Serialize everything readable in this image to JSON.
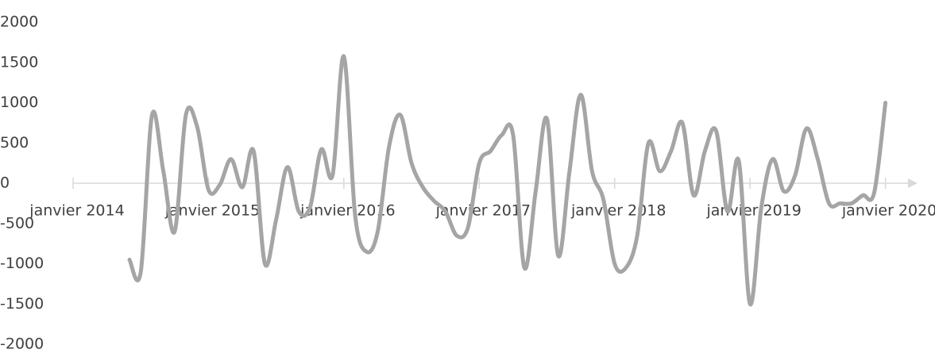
{
  "chart_data": {
    "type": "line",
    "x": [
      "2014-06",
      "2014-07",
      "2014-08",
      "2014-09",
      "2014-10",
      "2014-11",
      "2014-12",
      "2015-01",
      "2015-02",
      "2015-03",
      "2015-04",
      "2015-05",
      "2015-06",
      "2015-07",
      "2015-08",
      "2015-09",
      "2015-10",
      "2015-11",
      "2015-12",
      "2016-01",
      "2016-02",
      "2016-03",
      "2016-04",
      "2016-05",
      "2016-06",
      "2016-07",
      "2016-08",
      "2016-09",
      "2016-10",
      "2016-11",
      "2016-12",
      "2017-01",
      "2017-02",
      "2017-03",
      "2017-04",
      "2017-05",
      "2017-06",
      "2017-07",
      "2017-08",
      "2017-09",
      "2017-10",
      "2017-11",
      "2017-12",
      "2018-01",
      "2018-02",
      "2018-03",
      "2018-04",
      "2018-05",
      "2018-06",
      "2018-07",
      "2018-08",
      "2018-09",
      "2018-10",
      "2018-11",
      "2018-12",
      "2019-01",
      "2019-02",
      "2019-03",
      "2019-04",
      "2019-05",
      "2019-06",
      "2019-07",
      "2019-08",
      "2019-09",
      "2019-10",
      "2019-11",
      "2019-12",
      "2020-01"
    ],
    "series": [
      {
        "color": "#a5a5a5",
        "values": [
          -950,
          -1100,
          850,
          150,
          -600,
          850,
          700,
          -80,
          -20,
          300,
          -50,
          400,
          -1000,
          -450,
          200,
          -350,
          -300,
          420,
          100,
          1575,
          -400,
          -850,
          -600,
          450,
          850,
          250,
          -50,
          -220,
          -350,
          -650,
          -550,
          250,
          400,
          600,
          600,
          -1050,
          -100,
          800,
          -900,
          150,
          1100,
          150,
          -200,
          -1000,
          -1050,
          -650,
          500,
          150,
          400,
          750,
          -150,
          400,
          650,
          -350,
          280,
          -1500,
          -300,
          300,
          -100,
          100,
          680,
          300,
          -250,
          -250,
          -250,
          -150,
          -120,
          1000
        ]
      }
    ],
    "xlim": [
      "2014-01",
      "2020-03"
    ],
    "xticks": [
      {
        "value": "2014-01",
        "label": "janvier 2014"
      },
      {
        "value": "2015-01",
        "label": "janvier 2015"
      },
      {
        "value": "2016-01",
        "label": "janvier 2016"
      },
      {
        "value": "2017-01",
        "label": "janvier 2017"
      },
      {
        "value": "2018-01",
        "label": "janvier 2018"
      },
      {
        "value": "2019-01",
        "label": "janvier 2019"
      },
      {
        "value": "2020-01",
        "label": "janvier 2020"
      }
    ],
    "ylim": [
      -2000,
      2000
    ],
    "yticks": [
      -2000,
      -1500,
      -1000,
      -500,
      0,
      500,
      1000,
      1500,
      2000
    ],
    "grid": false
  }
}
